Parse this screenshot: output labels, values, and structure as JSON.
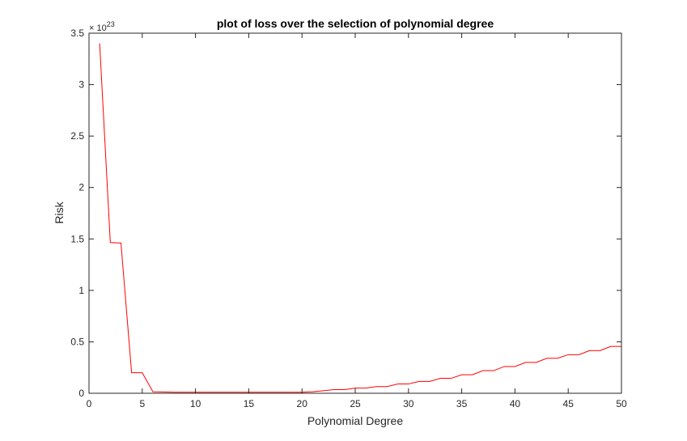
{
  "chart_data": {
    "type": "line",
    "title": "plot of loss over the selection of polynomial degree",
    "xlabel": "Polynomial Degree",
    "ylabel": "Risk",
    "y_exponent_base": "× 10",
    "y_exponent_power": "23",
    "xlim": [
      0,
      50
    ],
    "ylim": [
      0,
      3.5
    ],
    "xticks": [
      0,
      5,
      10,
      15,
      20,
      25,
      30,
      35,
      40,
      45,
      50
    ],
    "yticks": [
      0,
      0.5,
      1,
      1.5,
      2,
      2.5,
      3,
      3.5
    ],
    "ytick_labels": [
      "0",
      "0.5",
      "1",
      "1.5",
      "2",
      "2.5",
      "3",
      "3.5"
    ],
    "grid": false,
    "box": true,
    "series": [
      {
        "color": "#ff0000",
        "x": [
          1,
          2,
          3,
          4,
          5,
          6,
          7,
          8,
          9,
          10,
          11,
          12,
          13,
          14,
          15,
          16,
          17,
          18,
          19,
          20,
          21,
          22,
          23,
          24,
          25,
          26,
          27,
          28,
          29,
          30,
          31,
          32,
          33,
          34,
          35,
          36,
          37,
          38,
          39,
          40,
          41,
          42,
          43,
          44,
          45,
          46,
          47,
          48,
          49,
          50
        ],
        "y": [
          3.4,
          1.465,
          1.46,
          0.2,
          0.2,
          0.015,
          0.013,
          0.01,
          0.01,
          0.01,
          0.01,
          0.01,
          0.01,
          0.01,
          0.01,
          0.01,
          0.01,
          0.01,
          0.01,
          0.01,
          0.015,
          0.025,
          0.035,
          0.035,
          0.05,
          0.05,
          0.065,
          0.065,
          0.09,
          0.09,
          0.115,
          0.115,
          0.145,
          0.145,
          0.18,
          0.18,
          0.22,
          0.22,
          0.26,
          0.26,
          0.3,
          0.3,
          0.34,
          0.34,
          0.375,
          0.375,
          0.415,
          0.415,
          0.455,
          0.455
        ]
      }
    ]
  }
}
